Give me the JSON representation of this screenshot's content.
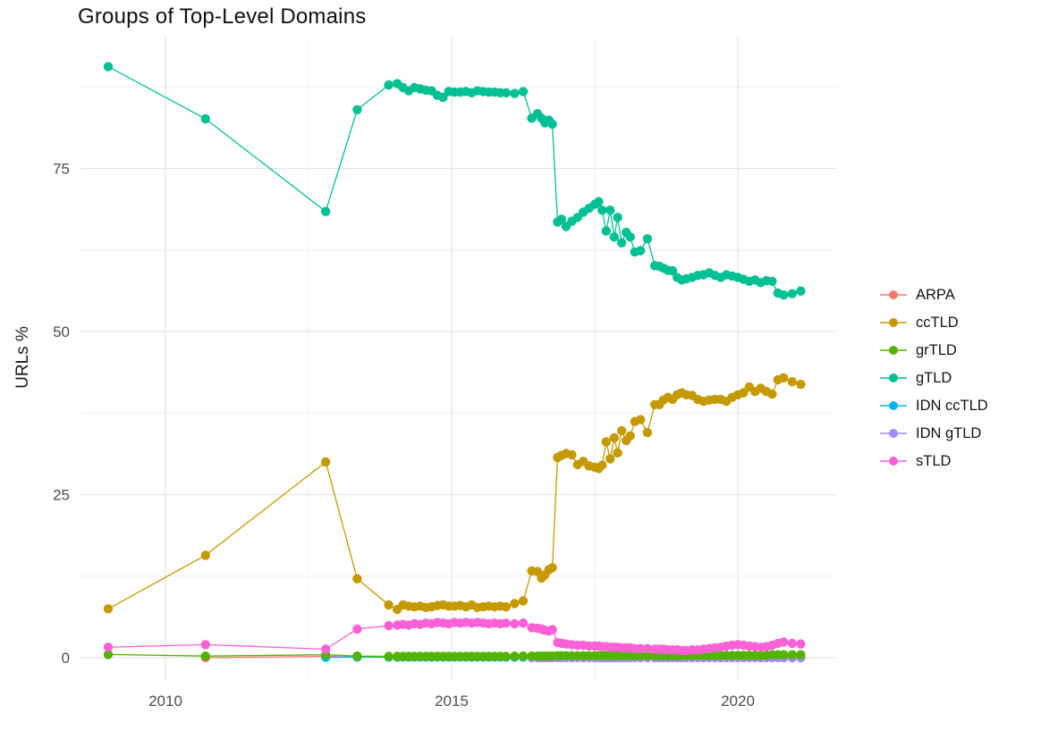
{
  "title": "Groups of Top-Level Domains",
  "axes": {
    "x": {
      "title": "",
      "major": [
        2010,
        2015,
        2020
      ],
      "minor": [
        2012.5,
        2017.5
      ],
      "tick_labels": [
        "2010",
        "2015",
        "2020"
      ]
    },
    "y": {
      "title": "URLs %",
      "major": [
        0,
        25,
        50,
        75
      ],
      "minor": [
        12.5,
        37.5,
        62.5,
        87.5
      ],
      "tick_labels": [
        "0",
        "25",
        "50",
        "75"
      ]
    }
  },
  "legend": {
    "items": [
      {
        "label": "ARPA",
        "color": "#F8766D"
      },
      {
        "label": "ccTLD",
        "color": "#C49A00"
      },
      {
        "label": "grTLD",
        "color": "#53B400"
      },
      {
        "label": "gTLD",
        "color": "#00C094"
      },
      {
        "label": "IDN ccTLD",
        "color": "#00B6EB"
      },
      {
        "label": "IDN gTLD",
        "color": "#A58AFF"
      },
      {
        "label": "sTLD",
        "color": "#FB61D7"
      }
    ]
  },
  "chart_data": {
    "type": "line",
    "title": "Groups of Top-Level Domains",
    "xlabel": "",
    "ylabel": "URLs %",
    "xlim": [
      2008.5,
      2021.7
    ],
    "ylim": [
      0,
      95
    ],
    "grid": true,
    "legend_position": "right",
    "x": [
      2009.0,
      2010.7,
      2012.8,
      2013.35,
      2013.9,
      2014.05,
      2014.15,
      2014.25,
      2014.35,
      2014.45,
      2014.55,
      2014.65,
      2014.75,
      2014.85,
      2014.95,
      2015.05,
      2015.15,
      2015.25,
      2015.35,
      2015.45,
      2015.55,
      2015.65,
      2015.75,
      2015.85,
      2015.95,
      2016.1,
      2016.25,
      2016.4,
      2016.5,
      2016.57,
      2016.63,
      2016.7,
      2016.76,
      2016.85,
      2016.92,
      2017.0,
      2017.1,
      2017.2,
      2017.3,
      2017.4,
      2017.5,
      2017.57,
      2017.63,
      2017.7,
      2017.77,
      2017.84,
      2017.9,
      2017.97,
      2018.05,
      2018.12,
      2018.2,
      2018.3,
      2018.42,
      2018.55,
      2018.63,
      2018.7,
      2018.78,
      2018.86,
      2018.94,
      2019.02,
      2019.1,
      2019.2,
      2019.3,
      2019.4,
      2019.5,
      2019.6,
      2019.7,
      2019.8,
      2019.9,
      2020.0,
      2020.1,
      2020.2,
      2020.3,
      2020.4,
      2020.5,
      2020.6,
      2020.7,
      2020.8,
      2020.95,
      2021.1
    ],
    "series": [
      {
        "name": "ARPA",
        "color": "#F8766D",
        "values": [
          null,
          0,
          0.2,
          0.1,
          0.1,
          0.1,
          0.1,
          0.1,
          0.1,
          0.1,
          0.1,
          0.1,
          0.1,
          0.1,
          0.1,
          0.1,
          0.1,
          0.1,
          0.1,
          0.1,
          0.1,
          0.1,
          0.1,
          0.1,
          0.1,
          0.1,
          0.1,
          0.1,
          0.1,
          0.1,
          0.1,
          0.1,
          0.1,
          0.1,
          0.1,
          0.1,
          0.1,
          0.1,
          0.1,
          0.1,
          0.1,
          0.1,
          0.1,
          0.1,
          0.1,
          0.1,
          0.1,
          0.1,
          0.1,
          0.1,
          0.1,
          0.1,
          0.1,
          0.1,
          0.1,
          0.1,
          0.1,
          0.1,
          0.1,
          0.1,
          0.1,
          0.1,
          0.1,
          0.1,
          0.1,
          0.1,
          0.1,
          0.1,
          0.1,
          0.1,
          0.1,
          0.1,
          0.1,
          0.1,
          0.1,
          0.1,
          0.1,
          0.1,
          0.1,
          0.1
        ]
      },
      {
        "name": "ccTLD",
        "color": "#C49A00",
        "values": [
          7.5,
          15.7,
          30.0,
          12.1,
          8.1,
          7.4,
          8.1,
          7.9,
          7.8,
          7.9,
          7.7,
          7.8,
          8.0,
          8.1,
          7.9,
          7.9,
          8.0,
          7.8,
          8.1,
          7.7,
          7.8,
          7.9,
          7.8,
          7.9,
          7.8,
          8.3,
          8.7,
          13.3,
          13.2,
          12.2,
          12.7,
          13.5,
          13.8,
          30.7,
          31.0,
          31.3,
          31.1,
          29.6,
          30.1,
          29.4,
          29.2,
          29.0,
          29.5,
          33.1,
          30.5,
          33.7,
          31.4,
          34.8,
          33.3,
          34.0,
          36.2,
          36.5,
          34.5,
          38.8,
          38.8,
          39.5,
          39.9,
          39.6,
          40.3,
          40.6,
          40.3,
          40.2,
          39.6,
          39.3,
          39.5,
          39.6,
          39.6,
          39.3,
          39.9,
          40.3,
          40.6,
          41.5,
          40.8,
          41.3,
          40.8,
          40.4,
          42.6,
          42.9,
          42.3,
          41.9
        ]
      },
      {
        "name": "grTLD",
        "color": "#53B400",
        "values": [
          0.5,
          0.25,
          0.45,
          0.25,
          0.2,
          0.2,
          0.2,
          0.2,
          0.2,
          0.2,
          0.2,
          0.2,
          0.2,
          0.2,
          0.2,
          0.2,
          0.2,
          0.2,
          0.2,
          0.2,
          0.2,
          0.2,
          0.2,
          0.2,
          0.2,
          0.25,
          0.25,
          0.25,
          0.25,
          0.25,
          0.25,
          0.25,
          0.25,
          0.3,
          0.3,
          0.3,
          0.3,
          0.3,
          0.3,
          0.3,
          0.3,
          0.3,
          0.3,
          0.3,
          0.3,
          0.3,
          0.3,
          0.3,
          0.3,
          0.3,
          0.3,
          0.3,
          0.3,
          0.3,
          0.3,
          0.3,
          0.3,
          0.3,
          0.3,
          0.3,
          0.35,
          0.35,
          0.35,
          0.35,
          0.35,
          0.35,
          0.35,
          0.35,
          0.35,
          0.35,
          0.35,
          0.35,
          0.35,
          0.35,
          0.35,
          0.45,
          0.45,
          0.45,
          0.45,
          0.45
        ]
      },
      {
        "name": "gTLD",
        "color": "#00C094",
        "values": [
          90.6,
          82.6,
          68.4,
          84.0,
          87.8,
          88.0,
          87.4,
          86.9,
          87.4,
          87.2,
          87.0,
          86.9,
          86.2,
          85.9,
          86.8,
          86.7,
          86.7,
          86.8,
          86.6,
          86.9,
          86.8,
          86.7,
          86.7,
          86.6,
          86.6,
          86.5,
          86.8,
          82.7,
          83.4,
          82.7,
          82.0,
          82.4,
          81.8,
          66.8,
          67.2,
          66.1,
          66.9,
          67.5,
          68.3,
          68.9,
          69.5,
          69.9,
          68.6,
          65.4,
          68.6,
          64.5,
          67.5,
          63.6,
          65.2,
          64.5,
          62.2,
          62.4,
          64.2,
          60.1,
          60.0,
          59.7,
          59.4,
          59.3,
          58.3,
          57.9,
          58.1,
          58.3,
          58.6,
          58.7,
          59.0,
          58.6,
          58.3,
          58.7,
          58.5,
          58.3,
          58.0,
          57.7,
          57.9,
          57.5,
          57.8,
          57.7,
          55.9,
          55.6,
          55.8,
          56.2
        ]
      },
      {
        "name": "IDN ccTLD",
        "color": "#00B6EB",
        "values": [
          null,
          null,
          0.05,
          0.1,
          0.1,
          0.1,
          0.1,
          0.1,
          0.1,
          0.1,
          0.1,
          0.1,
          0.1,
          0.1,
          0.1,
          0.1,
          0.1,
          0.1,
          0.1,
          0.1,
          0.1,
          0.1,
          0.1,
          0.1,
          0.1,
          0.1,
          0.1,
          0.1,
          0.1,
          0.1,
          0.1,
          0.1,
          0.1,
          0.1,
          0.1,
          0.1,
          0.1,
          0.1,
          0.1,
          0.1,
          0.1,
          0.1,
          0.1,
          0.1,
          0.1,
          0.1,
          0.1,
          0.1,
          0.1,
          0.1,
          0.1,
          0.1,
          0.1,
          0.1,
          0.1,
          0.1,
          0.1,
          0.1,
          0.1,
          0.1,
          0.1,
          0.1,
          0.1,
          0.1,
          0.1,
          0.1,
          0.1,
          0.1,
          0.1,
          0.1,
          0.1,
          0.1,
          0.1,
          0.1,
          0.1,
          0.1,
          0.1,
          0.1,
          0.1,
          0.1
        ]
      },
      {
        "name": "IDN gTLD",
        "color": "#A58AFF",
        "values": [
          null,
          null,
          null,
          null,
          null,
          null,
          null,
          null,
          null,
          null,
          null,
          null,
          null,
          null,
          null,
          null,
          null,
          null,
          null,
          null,
          null,
          null,
          null,
          null,
          null,
          null,
          null,
          0,
          0,
          0,
          0,
          0,
          0,
          0,
          0,
          0,
          0,
          0,
          0,
          0,
          0,
          0,
          0,
          0,
          0,
          0,
          0,
          0,
          0,
          0,
          0,
          0,
          0,
          0,
          0,
          0,
          0,
          0,
          0,
          0,
          0,
          0,
          0,
          0,
          0,
          0,
          0,
          0,
          0,
          0,
          0,
          0,
          0,
          0,
          0,
          0,
          0,
          0,
          0,
          0
        ]
      },
      {
        "name": "sTLD",
        "color": "#FB61D7",
        "values": [
          1.6,
          2.0,
          1.3,
          4.4,
          4.9,
          5.0,
          5.1,
          5.0,
          5.2,
          5.1,
          5.3,
          5.2,
          5.4,
          5.3,
          5.2,
          5.4,
          5.3,
          5.4,
          5.3,
          5.4,
          5.3,
          5.2,
          5.3,
          5.2,
          5.3,
          5.2,
          5.3,
          4.6,
          4.5,
          4.4,
          4.2,
          4.1,
          4.3,
          2.3,
          2.2,
          2.1,
          2.0,
          1.9,
          1.9,
          1.8,
          1.8,
          1.8,
          1.7,
          1.7,
          1.6,
          1.6,
          1.6,
          1.5,
          1.5,
          1.5,
          1.4,
          1.4,
          1.4,
          1.3,
          1.3,
          1.3,
          1.2,
          1.2,
          1.2,
          1.1,
          1.1,
          1.2,
          1.2,
          1.3,
          1.4,
          1.5,
          1.6,
          1.8,
          1.9,
          2.0,
          1.9,
          1.8,
          1.7,
          1.6,
          1.7,
          1.9,
          2.2,
          2.4,
          2.2,
          2.1
        ]
      }
    ],
    "draw_order": [
      "ARPA",
      "IDN ccTLD",
      "IDN gTLD",
      "grTLD",
      "sTLD",
      "ccTLD",
      "gTLD"
    ]
  }
}
